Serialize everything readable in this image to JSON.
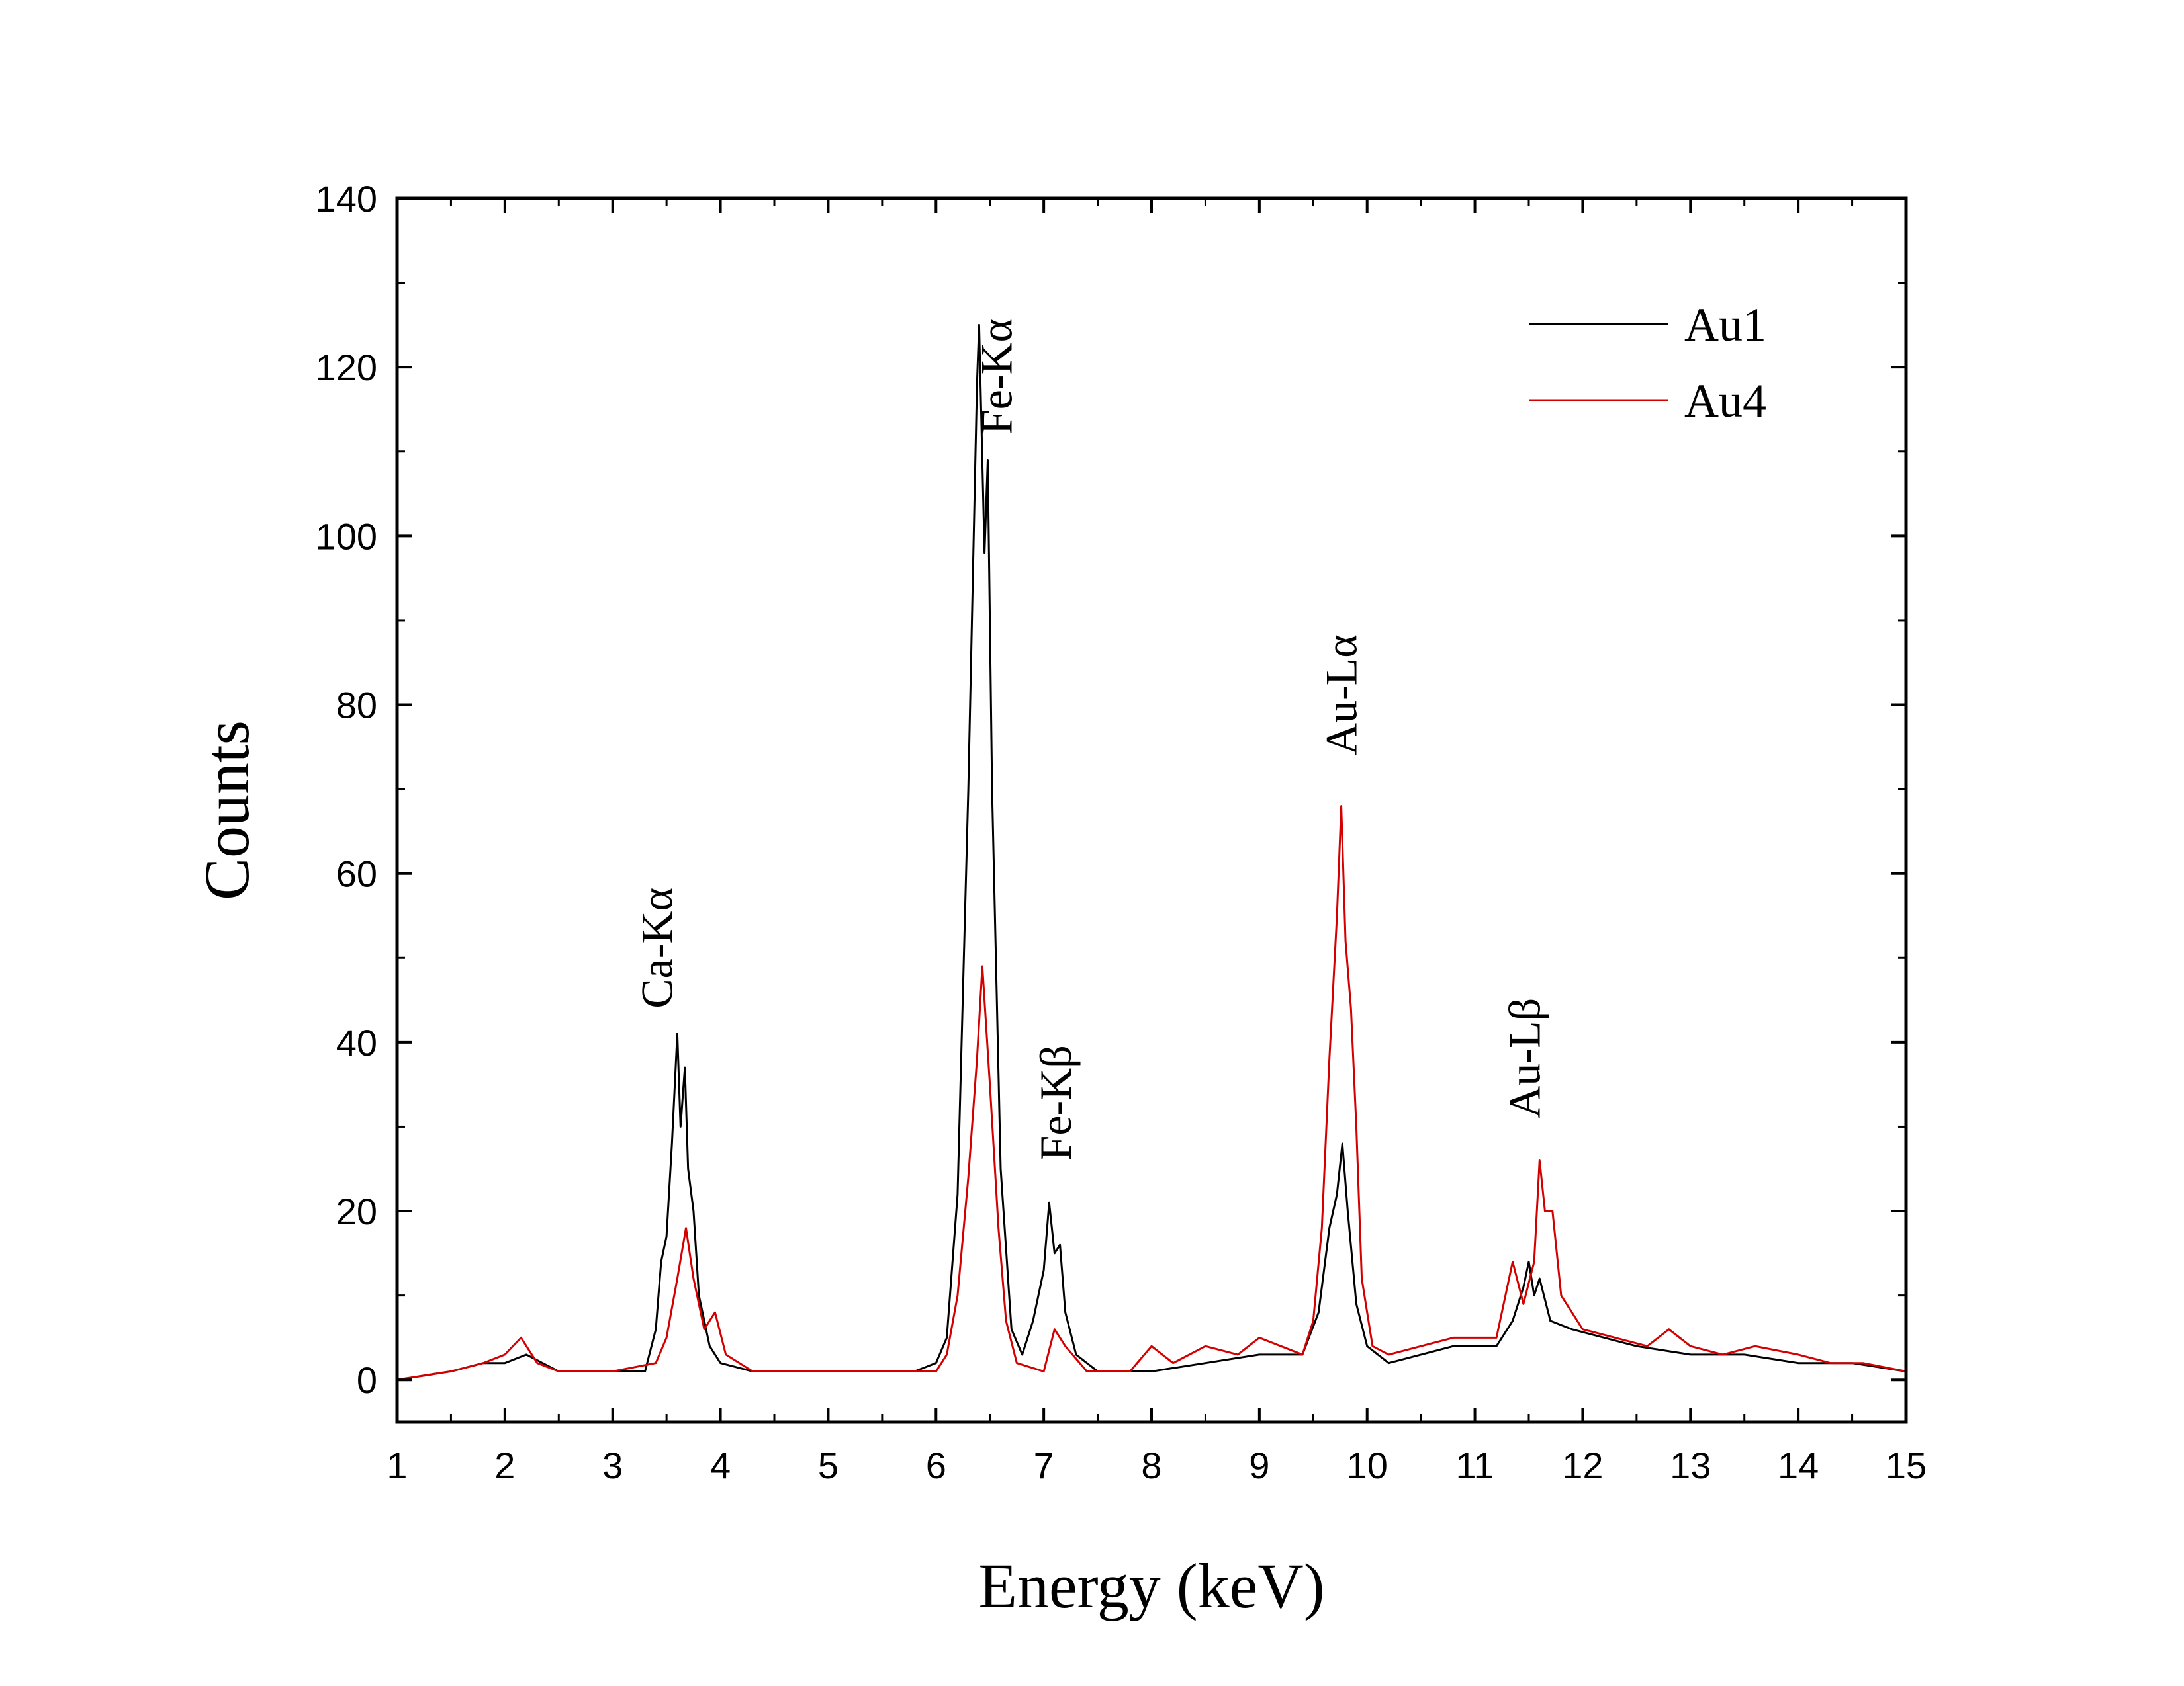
{
  "chart_data": {
    "type": "line",
    "title": "",
    "xlabel": "Energy (keV)",
    "ylabel": "Counts",
    "xlim": [
      1,
      15
    ],
    "ylim": [
      -5,
      140
    ],
    "x_ticks": [
      1,
      2,
      3,
      4,
      5,
      6,
      7,
      8,
      9,
      10,
      11,
      12,
      13,
      14,
      15
    ],
    "y_ticks": [
      0,
      20,
      40,
      60,
      80,
      100,
      120,
      140
    ],
    "grid": false,
    "legend_position": "top-right",
    "series": [
      {
        "name": "Au1",
        "color": "#000000",
        "points": [
          [
            1.0,
            0
          ],
          [
            1.5,
            1
          ],
          [
            1.8,
            2
          ],
          [
            2.0,
            2
          ],
          [
            2.2,
            3
          ],
          [
            2.5,
            1
          ],
          [
            3.0,
            1
          ],
          [
            3.3,
            1
          ],
          [
            3.4,
            6
          ],
          [
            3.45,
            14
          ],
          [
            3.5,
            17
          ],
          [
            3.55,
            28
          ],
          [
            3.6,
            41
          ],
          [
            3.63,
            30
          ],
          [
            3.67,
            37
          ],
          [
            3.7,
            25
          ],
          [
            3.75,
            20
          ],
          [
            3.8,
            10
          ],
          [
            3.9,
            4
          ],
          [
            4.0,
            2
          ],
          [
            4.3,
            1
          ],
          [
            5.0,
            1
          ],
          [
            5.8,
            1
          ],
          [
            6.0,
            2
          ],
          [
            6.1,
            5
          ],
          [
            6.2,
            22
          ],
          [
            6.3,
            70
          ],
          [
            6.38,
            118
          ],
          [
            6.4,
            125
          ],
          [
            6.45,
            98
          ],
          [
            6.48,
            109
          ],
          [
            6.52,
            70
          ],
          [
            6.6,
            25
          ],
          [
            6.7,
            6
          ],
          [
            6.8,
            3
          ],
          [
            6.9,
            7
          ],
          [
            7.0,
            13
          ],
          [
            7.05,
            21
          ],
          [
            7.1,
            15
          ],
          [
            7.15,
            16
          ],
          [
            7.2,
            8
          ],
          [
            7.3,
            3
          ],
          [
            7.5,
            1
          ],
          [
            8.0,
            1
          ],
          [
            8.5,
            2
          ],
          [
            9.0,
            3
          ],
          [
            9.4,
            3
          ],
          [
            9.55,
            8
          ],
          [
            9.65,
            18
          ],
          [
            9.72,
            22
          ],
          [
            9.77,
            28
          ],
          [
            9.82,
            20
          ],
          [
            9.9,
            9
          ],
          [
            10.0,
            4
          ],
          [
            10.2,
            2
          ],
          [
            10.5,
            3
          ],
          [
            10.8,
            4
          ],
          [
            11.0,
            4
          ],
          [
            11.2,
            4
          ],
          [
            11.35,
            7
          ],
          [
            11.45,
            11
          ],
          [
            11.5,
            14
          ],
          [
            11.55,
            10
          ],
          [
            11.6,
            12
          ],
          [
            11.7,
            7
          ],
          [
            11.9,
            6
          ],
          [
            12.2,
            5
          ],
          [
            12.5,
            4
          ],
          [
            13.0,
            3
          ],
          [
            13.5,
            3
          ],
          [
            14.0,
            2
          ],
          [
            14.5,
            2
          ],
          [
            15.0,
            1
          ]
        ]
      },
      {
        "name": "Au4",
        "color": "#d40000",
        "points": [
          [
            1.0,
            0
          ],
          [
            1.5,
            1
          ],
          [
            1.8,
            2
          ],
          [
            2.0,
            3
          ],
          [
            2.15,
            5
          ],
          [
            2.3,
            2
          ],
          [
            2.5,
            1
          ],
          [
            3.0,
            1
          ],
          [
            3.4,
            2
          ],
          [
            3.5,
            5
          ],
          [
            3.6,
            12
          ],
          [
            3.68,
            18
          ],
          [
            3.75,
            12
          ],
          [
            3.85,
            6
          ],
          [
            3.95,
            8
          ],
          [
            4.05,
            3
          ],
          [
            4.3,
            1
          ],
          [
            5.0,
            1
          ],
          [
            6.0,
            1
          ],
          [
            6.1,
            3
          ],
          [
            6.2,
            10
          ],
          [
            6.3,
            24
          ],
          [
            6.38,
            38
          ],
          [
            6.43,
            49
          ],
          [
            6.5,
            35
          ],
          [
            6.58,
            18
          ],
          [
            6.65,
            7
          ],
          [
            6.75,
            2
          ],
          [
            7.0,
            1
          ],
          [
            7.1,
            6
          ],
          [
            7.2,
            4
          ],
          [
            7.4,
            1
          ],
          [
            7.8,
            1
          ],
          [
            8.0,
            4
          ],
          [
            8.2,
            2
          ],
          [
            8.5,
            4
          ],
          [
            8.8,
            3
          ],
          [
            9.0,
            5
          ],
          [
            9.2,
            4
          ],
          [
            9.4,
            3
          ],
          [
            9.5,
            7
          ],
          [
            9.58,
            18
          ],
          [
            9.65,
            38
          ],
          [
            9.72,
            55
          ],
          [
            9.76,
            68
          ],
          [
            9.8,
            52
          ],
          [
            9.85,
            44
          ],
          [
            9.9,
            30
          ],
          [
            9.95,
            12
          ],
          [
            10.05,
            4
          ],
          [
            10.2,
            3
          ],
          [
            10.5,
            4
          ],
          [
            10.8,
            5
          ],
          [
            11.0,
            5
          ],
          [
            11.2,
            5
          ],
          [
            11.35,
            14
          ],
          [
            11.45,
            9
          ],
          [
            11.55,
            14
          ],
          [
            11.6,
            26
          ],
          [
            11.65,
            20
          ],
          [
            11.72,
            20
          ],
          [
            11.8,
            10
          ],
          [
            12.0,
            6
          ],
          [
            12.3,
            5
          ],
          [
            12.6,
            4
          ],
          [
            12.8,
            6
          ],
          [
            13.0,
            4
          ],
          [
            13.3,
            3
          ],
          [
            13.6,
            4
          ],
          [
            14.0,
            3
          ],
          [
            14.3,
            2
          ],
          [
            14.6,
            2
          ],
          [
            15.0,
            1
          ]
        ]
      }
    ],
    "annotations": [
      {
        "text": "Ca-Kα",
        "x": 3.55,
        "y": 44
      },
      {
        "text": "Fe-Kα",
        "x": 6.7,
        "y": 112
      },
      {
        "text": "Fe-Kβ",
        "x": 7.25,
        "y": 26
      },
      {
        "text": "Au-Lα",
        "x": 9.9,
        "y": 74
      },
      {
        "text": "Au-Lβ",
        "x": 11.6,
        "y": 31
      }
    ]
  }
}
